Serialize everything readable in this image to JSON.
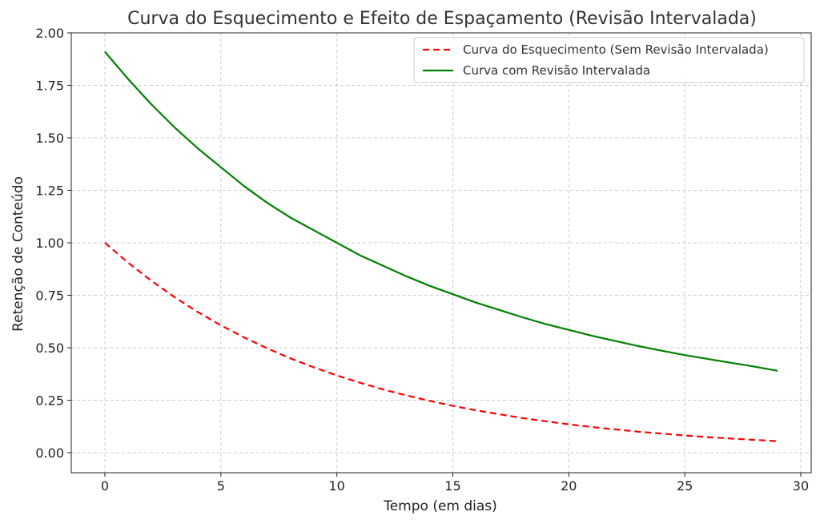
{
  "chart_data": {
    "type": "line",
    "title": "Curva do Esquecimento e Efeito de Espaçamento (Revisão Intervalada)",
    "xlabel": "Tempo (em dias)",
    "ylabel": "Retenção de Conteúdo",
    "xlim": [
      -1.45,
      30.45
    ],
    "ylim": [
      -0.0955,
      2.0
    ],
    "xticks": [
      0,
      5,
      10,
      15,
      20,
      25,
      30
    ],
    "xtick_labels": [
      "0",
      "5",
      "10",
      "15",
      "20",
      "25",
      "30"
    ],
    "yticks": [
      0.0,
      0.25,
      0.5,
      0.75,
      1.0,
      1.25,
      1.5,
      1.75,
      2.0
    ],
    "ytick_labels": [
      "0.00",
      "0.25",
      "0.50",
      "0.75",
      "1.00",
      "1.25",
      "1.50",
      "1.75",
      "2.00"
    ],
    "grid": true,
    "legend_position": "top-right",
    "x": [
      0,
      1,
      2,
      3,
      4,
      5,
      6,
      7,
      8,
      9,
      10,
      11,
      12,
      13,
      14,
      15,
      16,
      17,
      18,
      19,
      20,
      21,
      22,
      23,
      24,
      25,
      26,
      27,
      28,
      29
    ],
    "series": [
      {
        "name": "Curva do Esquecimento (Sem Revisão Intervalada)",
        "color": "#ff0000",
        "style": "dashed",
        "values": [
          1.0,
          0.905,
          0.819,
          0.741,
          0.67,
          0.607,
          0.549,
          0.497,
          0.449,
          0.407,
          0.368,
          0.333,
          0.301,
          0.273,
          0.247,
          0.223,
          0.202,
          0.183,
          0.165,
          0.15,
          0.135,
          0.122,
          0.111,
          0.1,
          0.091,
          0.082,
          0.074,
          0.067,
          0.061,
          0.055
        ]
      },
      {
        "name": "Curva com Revisão Intervalada",
        "color": "#008000",
        "style": "solid",
        "values": [
          1.91,
          1.78,
          1.66,
          1.55,
          1.45,
          1.36,
          1.27,
          1.19,
          1.12,
          1.06,
          1.0,
          0.94,
          0.89,
          0.84,
          0.795,
          0.755,
          0.715,
          0.68,
          0.645,
          0.613,
          0.585,
          0.557,
          0.532,
          0.508,
          0.486,
          0.465,
          0.446,
          0.428,
          0.41,
          0.39
        ]
      }
    ]
  }
}
